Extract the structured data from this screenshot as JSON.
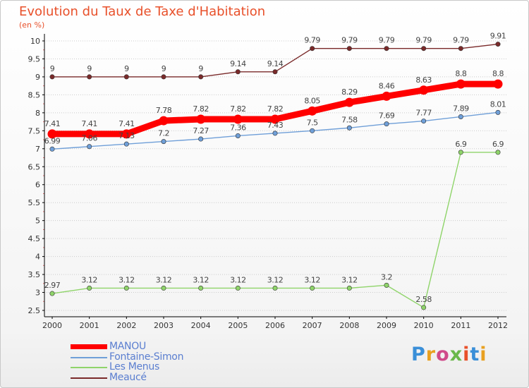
{
  "title": "Evolution du Taux de Taxe d'Habitation",
  "unit": "(en %)",
  "logo": "Proxiti",
  "colors": {
    "title": "#e8502a",
    "legend_text": "#5a7ed0",
    "axis": "#000000",
    "grid": "#cccccc"
  },
  "chart_data": {
    "type": "line",
    "title": "Evolution du Taux de Taxe d'Habitation",
    "ylabel": "(en %)",
    "xlabel": "",
    "x": [
      "2000",
      "2001",
      "2002",
      "2003",
      "2004",
      "2005",
      "2006",
      "2007",
      "2008",
      "2009",
      "2010",
      "2011",
      "2012"
    ],
    "ylim": [
      2.5,
      10
    ],
    "yticks": [
      "2.5",
      "3",
      "3.5",
      "4",
      "4.5",
      "5",
      "5.5",
      "6",
      "6.5",
      "7",
      "7.5",
      "8",
      "8.5",
      "9",
      "9.5",
      "10"
    ],
    "grid": "horizontal",
    "legend_position": "bottom-left",
    "series": [
      {
        "name": "MANOU",
        "color": "#ff0000",
        "labels_position": "above",
        "values": [
          7.41,
          7.41,
          7.41,
          7.78,
          7.82,
          7.82,
          7.82,
          8.05,
          8.29,
          8.46,
          8.63,
          8.8,
          8.8
        ],
        "labels": [
          "7.41",
          "7.41",
          "7.41",
          "7.78",
          "7.82",
          "7.82",
          "7.82",
          "8.05",
          "8.29",
          "8.46",
          "8.63",
          "8.8",
          "8.8"
        ]
      },
      {
        "name": "Fontaine-Simon",
        "color": "#6f9fd8",
        "labels_position": "above",
        "values": [
          6.99,
          7.06,
          7.13,
          7.2,
          7.27,
          7.36,
          7.43,
          7.5,
          7.58,
          7.69,
          7.77,
          7.89,
          8.01
        ],
        "labels": [
          "6.99",
          "7.06",
          "7.13",
          "7.2",
          "7.27",
          "7.36",
          "7.43",
          "7.5",
          "7.58",
          "7.69",
          "7.77",
          "7.89",
          "8.01"
        ]
      },
      {
        "name": "Les Menus",
        "color": "#8fd46a",
        "labels_position": "above",
        "values": [
          2.97,
          3.12,
          3.12,
          3.12,
          3.12,
          3.12,
          3.12,
          3.12,
          3.12,
          3.2,
          2.58,
          6.9,
          6.9
        ],
        "labels": [
          "2.97",
          "3.12",
          "3.12",
          "3.12",
          "3.12",
          "3.12",
          "3.12",
          "3.12",
          "3.12",
          "3.2",
          "2.58",
          "6.9",
          "6.9"
        ]
      },
      {
        "name": "Meaucé",
        "color": "#7a2a2a",
        "labels_position": "above",
        "values": [
          9,
          9,
          9,
          9,
          9,
          9.14,
          9.14,
          9.79,
          9.79,
          9.79,
          9.79,
          9.79,
          9.91
        ],
        "labels": [
          "9",
          "9",
          "9",
          "9",
          "9",
          "9.14",
          "9.14",
          "9.79",
          "9.79",
          "9.79",
          "9.79",
          "9.79",
          "9.91"
        ]
      }
    ]
  }
}
